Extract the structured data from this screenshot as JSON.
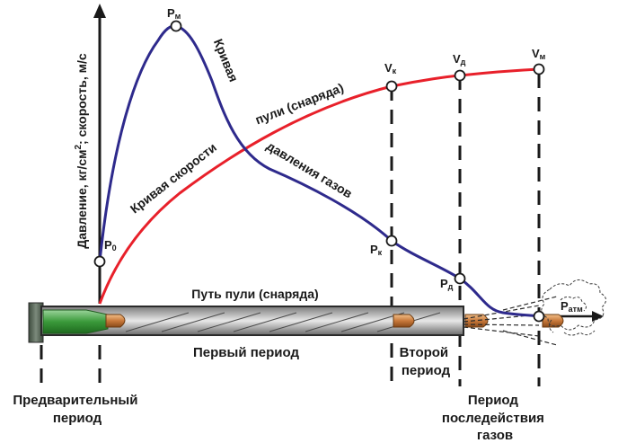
{
  "y_axis_label": {
    "main": "Давление, кг/см",
    "sup": "2",
    "tail": "; скорость, м/с"
  },
  "curve_labels": {
    "velocity_part1": "Кривая скорости",
    "velocity_part2": "пули (снаряда)",
    "pressure_part1": "Кривая",
    "pressure_part2": "давления газов"
  },
  "points": {
    "p0": {
      "base": "P",
      "sub": "0"
    },
    "pm": {
      "base": "P",
      "sub": "м"
    },
    "pk": {
      "base": "P",
      "sub": "к"
    },
    "pd": {
      "base": "P",
      "sub": "д"
    },
    "patm": {
      "base": "P",
      "sub": "атм"
    },
    "vk": {
      "base": "V",
      "sub": "к"
    },
    "vd": {
      "base": "V",
      "sub": "д"
    },
    "vm": {
      "base": "V",
      "sub": "м"
    }
  },
  "barrel_label": "Путь пули (снаряда)",
  "periods": {
    "first": "Первый период",
    "second_line1": "Второй",
    "second_line2": "период",
    "preliminary_line1": "Предварительный",
    "preliminary_line2": "период",
    "after_line1": "Период",
    "after_line2": "последействия",
    "after_line3": "газов"
  },
  "colors": {
    "pressure_curve": "#2e2a8c",
    "velocity_curve": "#e8202a",
    "barrel": "#4b4b4b",
    "breech": "#5e6b5e",
    "chamber": "#3a9a3a",
    "bullet": "#c8783a"
  }
}
